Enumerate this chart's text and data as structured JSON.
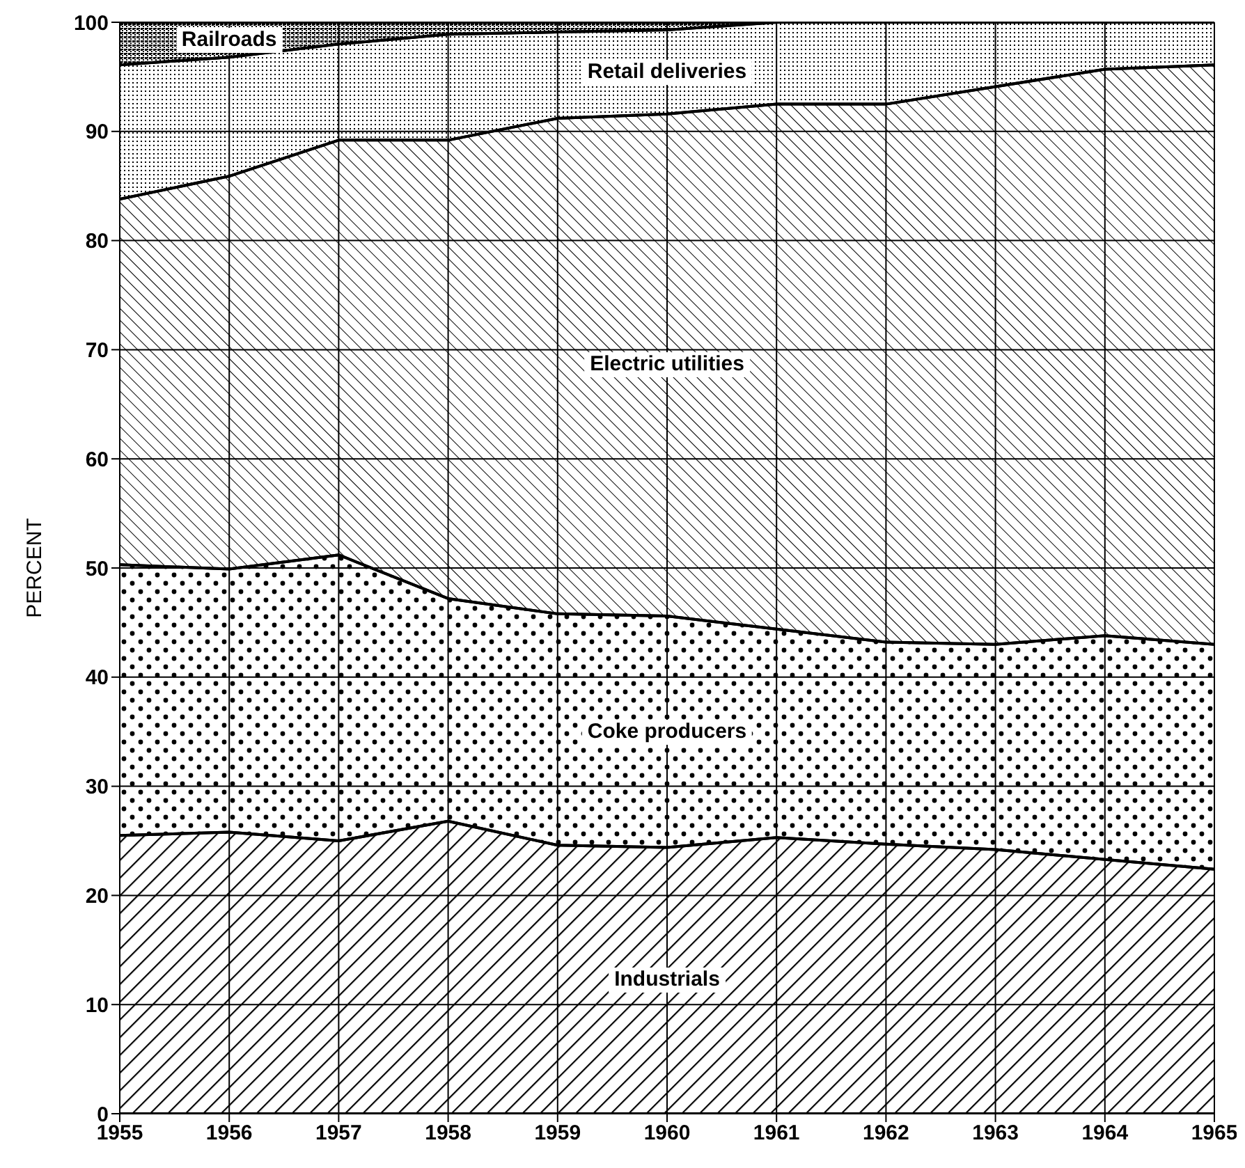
{
  "chart_data": {
    "type": "area",
    "stacked": true,
    "ylabel": "PERCENT",
    "x": [
      1955,
      1956,
      1957,
      1958,
      1959,
      1960,
      1961,
      1962,
      1963,
      1964,
      1965
    ],
    "xlim": [
      1955,
      1965
    ],
    "xticks": [
      1955,
      1956,
      1957,
      1958,
      1959,
      1960,
      1961,
      1962,
      1963,
      1964,
      1965
    ],
    "ylim": [
      0,
      100
    ],
    "yticks": [
      0,
      10,
      20,
      30,
      40,
      50,
      60,
      70,
      80,
      90,
      100
    ],
    "grid": true,
    "legend": false,
    "series": [
      {
        "name": "Industrials",
        "color": "#000000",
        "values": [
          25.5,
          25.8,
          25.0,
          26.8,
          24.6,
          24.4,
          25.3,
          24.7,
          24.2,
          23.3,
          22.4
        ]
      },
      {
        "name": "Coke producers",
        "color": "#000000",
        "values": [
          24.8,
          24.1,
          26.2,
          20.4,
          21.2,
          21.2,
          19.1,
          18.5,
          18.8,
          20.5,
          20.6
        ]
      },
      {
        "name": "Electric utilities",
        "color": "#000000",
        "values": [
          33.5,
          36.0,
          38.0,
          42.0,
          45.4,
          46.0,
          48.1,
          49.3,
          51.1,
          51.9,
          53.1
        ]
      },
      {
        "name": "Retail deliveries",
        "color": "#000000",
        "values": [
          12.3,
          10.9,
          8.8,
          9.7,
          7.9,
          7.7,
          7.5,
          7.5,
          5.9,
          4.3,
          3.9
        ]
      },
      {
        "name": "Railroads",
        "color": "#000000",
        "values": [
          3.9,
          3.2,
          2.0,
          1.1,
          0.9,
          0.7,
          0,
          0,
          0,
          0,
          0
        ]
      }
    ]
  }
}
